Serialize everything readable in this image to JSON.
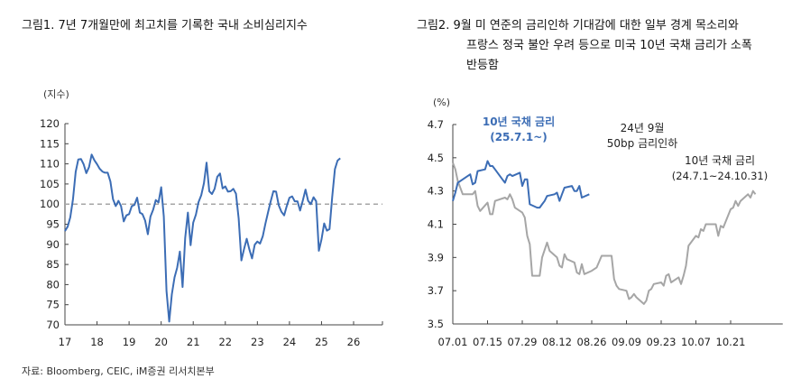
{
  "figure1": {
    "title": "그림1.   7년 7개월만에 최고치를 기록한 국내 소비심리지수"
  },
  "figure2": {
    "title_line1": "그림2.   9월 미 연준의 금리인하 기대감에 대한 일부 경계 목소리와",
    "title_line2": "프랑스 정국 불안 우려 등으로 미국 10년 국채 금리가 소폭",
    "title_line3": "반등함"
  },
  "source": "자료: Bloomberg, CEIC, iM증권 리서치본부",
  "chart_data": [
    {
      "type": "line",
      "unit_label": "(지수)",
      "ylim": [
        70,
        120
      ],
      "yticks": [
        "70",
        "75",
        "80",
        "85",
        "90",
        "95",
        "100",
        "105",
        "110",
        "115",
        "120"
      ],
      "xticks": [
        "17",
        "18",
        "19",
        "20",
        "21",
        "22",
        "23",
        "24",
        "25",
        "26"
      ],
      "xlim_years": [
        2017,
        2026.9
      ],
      "reference_line": {
        "value": 100,
        "style": "dashed",
        "color": "#a6a6a6"
      },
      "series": [
        {
          "color": "#3c6db5",
          "start": "2017-01",
          "frequency": "monthly",
          "values": [
            93.3,
            94.4,
            96.7,
            101.2,
            108.0,
            111.1,
            111.2,
            109.9,
            107.7,
            109.2,
            112.3,
            110.9,
            109.9,
            108.8,
            108.1,
            107.8,
            107.8,
            105.6,
            101.2,
            99.5,
            100.8,
            99.5,
            95.7,
            97.2,
            97.5,
            99.5,
            99.8,
            101.6,
            97.9,
            97.5,
            95.9,
            92.5,
            96.9,
            98.6,
            101.0,
            100.4,
            104.2,
            96.9,
            78.4,
            70.8,
            77.6,
            81.8,
            84.2,
            88.2,
            79.4,
            91.6,
            97.9,
            89.8,
            95.4,
            97.4,
            100.5,
            102.2,
            105.2,
            110.3,
            103.2,
            102.5,
            103.8,
            106.8,
            107.6,
            103.9,
            104.4,
            103.1,
            103.2,
            103.8,
            102.6,
            96.4,
            86.0,
            88.8,
            91.4,
            88.8,
            86.5,
            89.9,
            90.7,
            90.2,
            92.0,
            95.1,
            98.0,
            100.7,
            103.2,
            103.1,
            99.7,
            98.1,
            97.2,
            99.5,
            101.6,
            101.9,
            100.7,
            100.7,
            98.4,
            100.9,
            103.6,
            100.8,
            100.0,
            101.7,
            100.7,
            88.4,
            91.2,
            95.2,
            93.4,
            93.8,
            101.8,
            108.7,
            110.8,
            111.4
          ]
        }
      ]
    },
    {
      "type": "line",
      "unit_label": "(%)",
      "ylim": [
        3.5,
        4.7
      ],
      "yticks": [
        "3.5",
        "3.7",
        "3.9",
        "4.1",
        "4.3",
        "4.5",
        "4.7"
      ],
      "xticks": [
        "07.01",
        "07.15",
        "07.29",
        "08.12",
        "08.26",
        "09.09",
        "09.23",
        "10.07",
        "10.21"
      ],
      "xlim": [
        "07.01",
        "11.11"
      ],
      "annotation": {
        "line1": "24년 9월",
        "line2": "50bp 금리인하"
      },
      "series": [
        {
          "name": "10년 국채 금리",
          "name_sub": "(24.7.1~24.10.31)",
          "color": "#a6a6a6",
          "dates": [
            "07.01",
            "07.02",
            "07.03",
            "07.05",
            "07.09",
            "07.10",
            "07.11",
            "07.12",
            "07.15",
            "07.16",
            "07.17",
            "07.18",
            "07.22",
            "07.23",
            "07.24",
            "07.25",
            "07.26",
            "07.29",
            "07.30",
            "07.31",
            "08.01",
            "08.02",
            "08.05",
            "08.06",
            "08.08",
            "08.09",
            "08.12",
            "08.13",
            "08.14",
            "08.15",
            "08.16",
            "08.19",
            "08.20",
            "08.21",
            "08.22",
            "08.23",
            "08.26",
            "08.28",
            "08.30",
            "09.03",
            "09.04",
            "09.05",
            "09.06",
            "09.09",
            "09.10",
            "09.11",
            "09.12",
            "09.13",
            "09.16",
            "09.17",
            "09.18",
            "09.19",
            "09.20",
            "09.23",
            "09.24",
            "09.25",
            "09.26",
            "09.27",
            "09.30",
            "10.01",
            "10.02",
            "10.03",
            "10.04",
            "10.07",
            "10.08",
            "10.09",
            "10.10",
            "10.11",
            "10.15",
            "10.16",
            "10.17",
            "10.18",
            "10.21",
            "10.22",
            "10.23",
            "10.24",
            "10.25",
            "10.28",
            "10.29",
            "10.30",
            "10.31"
          ],
          "values": [
            4.47,
            4.43,
            4.36,
            4.28,
            4.28,
            4.3,
            4.21,
            4.18,
            4.23,
            4.16,
            4.16,
            4.24,
            4.26,
            4.25,
            4.28,
            4.25,
            4.2,
            4.17,
            4.14,
            4.03,
            3.98,
            3.79,
            3.79,
            3.9,
            3.99,
            3.94,
            3.9,
            3.85,
            3.84,
            3.92,
            3.89,
            3.87,
            3.81,
            3.8,
            3.86,
            3.8,
            3.82,
            3.84,
            3.91,
            3.91,
            3.77,
            3.73,
            3.71,
            3.7,
            3.65,
            3.66,
            3.68,
            3.66,
            3.62,
            3.64,
            3.7,
            3.71,
            3.74,
            3.75,
            3.73,
            3.79,
            3.8,
            3.75,
            3.78,
            3.74,
            3.79,
            3.85,
            3.97,
            4.03,
            4.02,
            4.07,
            4.06,
            4.1,
            4.1,
            4.03,
            4.09,
            4.08,
            4.19,
            4.2,
            4.24,
            4.21,
            4.24,
            4.28,
            4.26,
            4.3,
            4.28
          ]
        },
        {
          "name": "10년 국채 금리",
          "name_sub": "(25.7.1~)",
          "color": "#3c6db5",
          "dates": [
            "07.01",
            "07.02",
            "07.03",
            "07.07",
            "07.08",
            "07.09",
            "07.10",
            "07.11",
            "07.14",
            "07.15",
            "07.16",
            "07.17",
            "07.18",
            "07.21",
            "07.22",
            "07.23",
            "07.24",
            "07.25",
            "07.28",
            "07.29",
            "07.30",
            "07.31",
            "08.01",
            "08.04",
            "08.05",
            "08.06",
            "08.07",
            "08.08",
            "08.11",
            "08.12",
            "08.13",
            "08.14",
            "08.15",
            "08.18",
            "08.19",
            "08.20",
            "08.21",
            "08.22",
            "08.25"
          ],
          "values": [
            4.24,
            4.29,
            4.35,
            4.39,
            4.4,
            4.34,
            4.35,
            4.42,
            4.43,
            4.48,
            4.45,
            4.45,
            4.43,
            4.37,
            4.35,
            4.39,
            4.4,
            4.39,
            4.41,
            4.33,
            4.37,
            4.37,
            4.22,
            4.2,
            4.2,
            4.22,
            4.24,
            4.27,
            4.28,
            4.29,
            4.24,
            4.28,
            4.32,
            4.33,
            4.3,
            4.3,
            4.33,
            4.26,
            4.28
          ]
        }
      ]
    }
  ]
}
